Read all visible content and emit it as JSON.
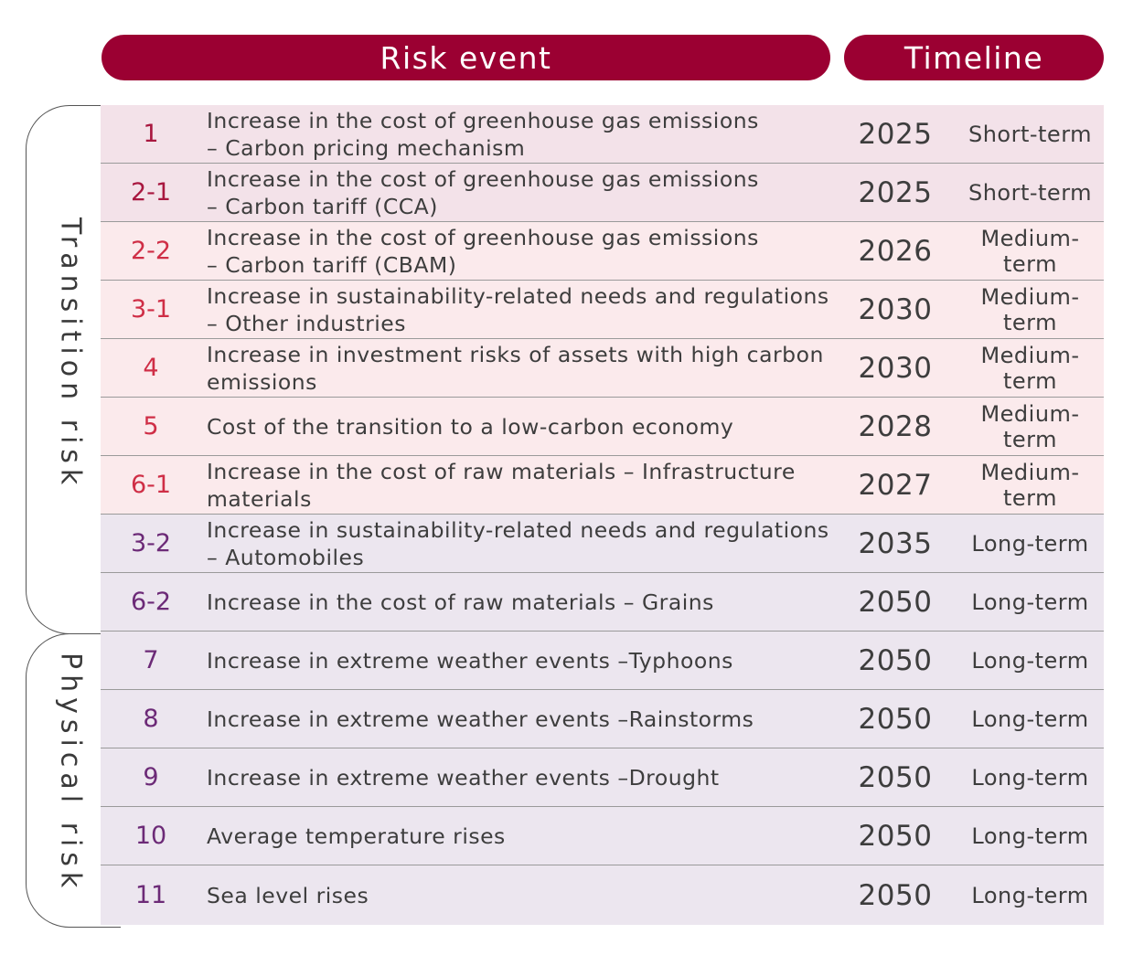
{
  "header": {
    "risk_event": "Risk event",
    "timeline": "Timeline"
  },
  "groups": {
    "transition": "Transition risk",
    "physical": "Physical risk"
  },
  "rows": [
    {
      "id": "1",
      "desc": "Increase in the cost of greenhouse gas emissions\n– Carbon pricing mechanism",
      "year": "2025",
      "term": "Short-term"
    },
    {
      "id": "2-1",
      "desc": "Increase in the cost of greenhouse gas emissions\n– Carbon tariff (CCA)",
      "year": "2025",
      "term": "Short-term"
    },
    {
      "id": "2-2",
      "desc": "Increase in the cost of greenhouse gas emissions\n– Carbon tariff (CBAM)",
      "year": "2026",
      "term": "Medium-term"
    },
    {
      "id": "3-1",
      "desc": "Increase in sustainability-related needs and regulations\n– Other industries",
      "year": "2030",
      "term": "Medium-term"
    },
    {
      "id": "4",
      "desc": "Increase in investment risks of assets with high carbon\nemissions",
      "year": "2030",
      "term": "Medium-term"
    },
    {
      "id": "5",
      "desc": "Cost of the transition to a low-carbon economy",
      "year": "2028",
      "term": "Medium-term"
    },
    {
      "id": "6-1",
      "desc": "Increase in the cost of raw materials – Infrastructure\nmaterials",
      "year": "2027",
      "term": "Medium-term"
    },
    {
      "id": "3-2",
      "desc": "Increase in sustainability-related needs and regulations\n– Automobiles",
      "year": "2035",
      "term": "Long-term"
    },
    {
      "id": "6-2",
      "desc": "Increase in the cost of raw materials – Grains",
      "year": "2050",
      "term": "Long-term"
    },
    {
      "id": "7",
      "desc": "Increase in extreme weather events –Typhoons",
      "year": "2050",
      "term": "Long-term"
    },
    {
      "id": "8",
      "desc": "Increase in extreme weather events –Rainstorms",
      "year": "2050",
      "term": "Long-term"
    },
    {
      "id": "9",
      "desc": "Increase in extreme weather events –Drought",
      "year": "2050",
      "term": "Long-term"
    },
    {
      "id": "10",
      "desc": "Average temperature rises",
      "year": "2050",
      "term": "Long-term"
    },
    {
      "id": "11",
      "desc": "Sea level rises",
      "year": "2050",
      "term": "Long-term"
    }
  ],
  "colors": {
    "header": "#9b0032",
    "short_bg": "#f3e2e9",
    "medium_bg": "#fbeaec",
    "long_bg": "#ece6ef",
    "short_num": "#a8173f",
    "medium_num": "#cf2e46",
    "long_num": "#6c2a77"
  }
}
